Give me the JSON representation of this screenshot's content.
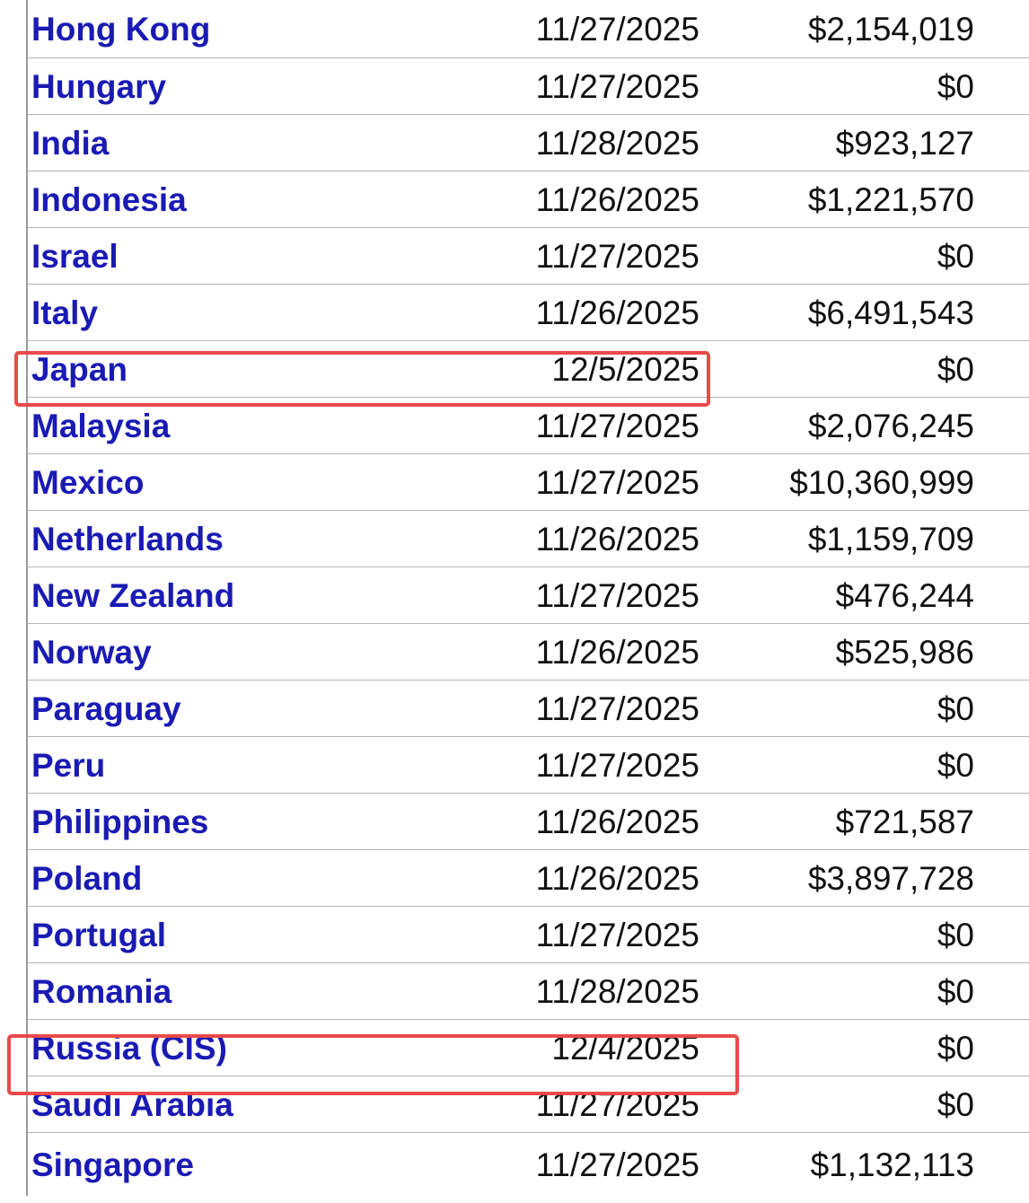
{
  "table": {
    "rows": [
      {
        "country": "Hong Kong",
        "date": "11/27/2025",
        "amount": "$2,154,019"
      },
      {
        "country": "Hungary",
        "date": "11/27/2025",
        "amount": "$0"
      },
      {
        "country": "India",
        "date": "11/28/2025",
        "amount": "$923,127"
      },
      {
        "country": "Indonesia",
        "date": "11/26/2025",
        "amount": "$1,221,570"
      },
      {
        "country": "Israel",
        "date": "11/27/2025",
        "amount": "$0"
      },
      {
        "country": "Italy",
        "date": "11/26/2025",
        "amount": "$6,491,543"
      },
      {
        "country": "Japan",
        "date": "12/5/2025",
        "amount": "$0"
      },
      {
        "country": "Malaysia",
        "date": "11/27/2025",
        "amount": "$2,076,245"
      },
      {
        "country": "Mexico",
        "date": "11/27/2025",
        "amount": "$10,360,999"
      },
      {
        "country": "Netherlands",
        "date": "11/26/2025",
        "amount": "$1,159,709"
      },
      {
        "country": "New Zealand",
        "date": "11/27/2025",
        "amount": "$476,244"
      },
      {
        "country": "Norway",
        "date": "11/26/2025",
        "amount": "$525,986"
      },
      {
        "country": "Paraguay",
        "date": "11/27/2025",
        "amount": "$0"
      },
      {
        "country": "Peru",
        "date": "11/27/2025",
        "amount": "$0"
      },
      {
        "country": "Philippines",
        "date": "11/26/2025",
        "amount": "$721,587"
      },
      {
        "country": "Poland",
        "date": "11/26/2025",
        "amount": "$3,897,728"
      },
      {
        "country": "Portugal",
        "date": "11/27/2025",
        "amount": "$0"
      },
      {
        "country": "Romania",
        "date": "11/28/2025",
        "amount": "$0"
      },
      {
        "country": "Russia (CIS)",
        "date": "12/4/2025",
        "amount": "$0"
      },
      {
        "country": "Saudi Arabia",
        "date": "11/27/2025",
        "amount": "$0"
      },
      {
        "country": "Singapore",
        "date": "11/27/2025",
        "amount": "$1,132,113"
      }
    ]
  },
  "colors": {
    "link": "#1a1ab4",
    "highlight": "#e94a4a"
  }
}
